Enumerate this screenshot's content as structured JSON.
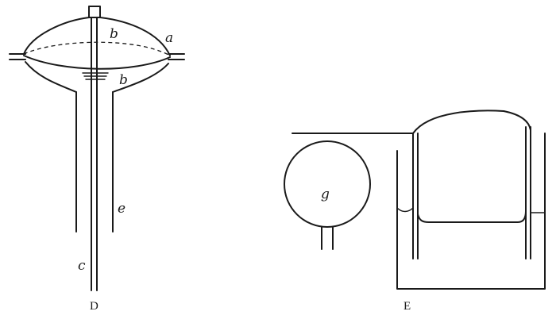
{
  "figure_d": {
    "caption": "D",
    "labels": {
      "a": "a",
      "b_upper": "b",
      "b_lower": "b",
      "e": "e",
      "c": "c"
    }
  },
  "figure_e": {
    "caption": "E",
    "labels": {
      "g": "g"
    }
  }
}
